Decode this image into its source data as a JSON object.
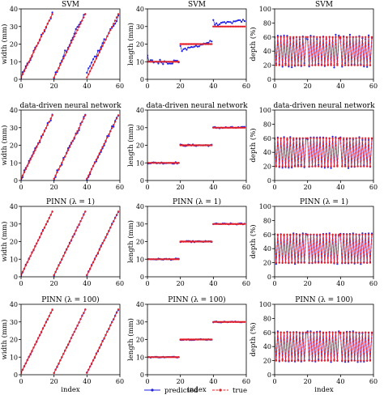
{
  "legend": {
    "predicted_label": "predicted",
    "true_label": "true"
  },
  "colors": {
    "predicted": "#1f1fe0",
    "true": "#e0202a",
    "axis": "#000000"
  },
  "chart_data": [
    {
      "type": "line",
      "title": "SVM",
      "xlabel": "",
      "ylabel": "width (mm)",
      "xlim": [
        0,
        60
      ],
      "ylim": [
        0,
        40
      ],
      "xticks": [
        "0",
        "20",
        "40",
        "60"
      ],
      "yticks": [
        "0",
        "10",
        "20",
        "30",
        "40"
      ],
      "kind": "width",
      "quality": "svm"
    },
    {
      "type": "line",
      "title": "SVM",
      "xlabel": "",
      "ylabel": "length (mm)",
      "xlim": [
        0,
        60
      ],
      "ylim": [
        0,
        40
      ],
      "xticks": [
        "0",
        "20",
        "40",
        "60"
      ],
      "yticks": [
        "0",
        "10",
        "20",
        "30",
        "40"
      ],
      "kind": "length",
      "quality": "svm"
    },
    {
      "type": "line",
      "title": "SVM",
      "xlabel": "",
      "ylabel": "depth (%)",
      "xlim": [
        0,
        60
      ],
      "ylim": [
        0,
        100
      ],
      "xticks": [
        "0",
        "20",
        "40",
        "60"
      ],
      "yticks": [
        "0",
        "20",
        "40",
        "60",
        "80",
        "100"
      ],
      "kind": "depth",
      "quality": "svm"
    },
    {
      "type": "line",
      "title": "data-driven neural network",
      "xlabel": "",
      "ylabel": "width (mm)",
      "xlim": [
        0,
        60
      ],
      "ylim": [
        0,
        40
      ],
      "xticks": [
        "0",
        "20",
        "40",
        "60"
      ],
      "yticks": [
        "0",
        "10",
        "20",
        "30",
        "40"
      ],
      "kind": "width",
      "quality": "nn"
    },
    {
      "type": "line",
      "title": "data-driven neural network",
      "xlabel": "",
      "ylabel": "length (mm)",
      "xlim": [
        0,
        60
      ],
      "ylim": [
        0,
        40
      ],
      "xticks": [
        "0",
        "20",
        "40",
        "60"
      ],
      "yticks": [
        "0",
        "10",
        "20",
        "30",
        "40"
      ],
      "kind": "length",
      "quality": "nn"
    },
    {
      "type": "line",
      "title": "data-driven neural network",
      "xlabel": "",
      "ylabel": "depth (%)",
      "xlim": [
        0,
        60
      ],
      "ylim": [
        0,
        100
      ],
      "xticks": [
        "0",
        "20",
        "40",
        "60"
      ],
      "yticks": [
        "0",
        "20",
        "40",
        "60",
        "80",
        "100"
      ],
      "kind": "depth",
      "quality": "nn"
    },
    {
      "type": "line",
      "title": "PINN (λ = 1)",
      "xlabel": "",
      "ylabel": "width (mm)",
      "xlim": [
        0,
        60
      ],
      "ylim": [
        0,
        40
      ],
      "xticks": [
        "0",
        "20",
        "40",
        "60"
      ],
      "yticks": [
        "0",
        "10",
        "20",
        "30",
        "40"
      ],
      "kind": "width",
      "quality": "pinn1"
    },
    {
      "type": "line",
      "title": "PINN (λ = 1)",
      "xlabel": "",
      "ylabel": "length (mm)",
      "xlim": [
        0,
        60
      ],
      "ylim": [
        0,
        40
      ],
      "xticks": [
        "0",
        "20",
        "40",
        "60"
      ],
      "yticks": [
        "0",
        "10",
        "20",
        "30",
        "40"
      ],
      "kind": "length",
      "quality": "pinn1"
    },
    {
      "type": "line",
      "title": "PINN (λ = 1)",
      "xlabel": "",
      "ylabel": "depth (%)",
      "xlim": [
        0,
        60
      ],
      "ylim": [
        0,
        100
      ],
      "xticks": [
        "0",
        "20",
        "40",
        "60"
      ],
      "yticks": [
        "0",
        "20",
        "40",
        "60",
        "80",
        "100"
      ],
      "kind": "depth",
      "quality": "pinn1"
    },
    {
      "type": "line",
      "title": "PINN (λ = 100)",
      "xlabel": "index",
      "ylabel": "width (mm)",
      "xlim": [
        0,
        60
      ],
      "ylim": [
        0,
        40
      ],
      "xticks": [
        "0",
        "20",
        "40",
        "60"
      ],
      "yticks": [
        "0",
        "10",
        "20",
        "30",
        "40"
      ],
      "kind": "width",
      "quality": "pinn100"
    },
    {
      "type": "line",
      "title": "PINN (λ = 100)",
      "xlabel": "index",
      "ylabel": "length (mm)",
      "xlim": [
        0,
        60
      ],
      "ylim": [
        0,
        40
      ],
      "xticks": [
        "0",
        "20",
        "40",
        "60"
      ],
      "yticks": [
        "0",
        "10",
        "20",
        "30",
        "40"
      ],
      "kind": "length",
      "quality": "pinn100"
    },
    {
      "type": "line",
      "title": "PINN (λ = 100)",
      "xlabel": "index",
      "ylabel": "depth (%)",
      "xlim": [
        0,
        60
      ],
      "ylim": [
        0,
        100
      ],
      "xticks": [
        "0",
        "20",
        "40",
        "60"
      ],
      "yticks": [
        "0",
        "20",
        "40",
        "60",
        "80",
        "100"
      ],
      "kind": "depth",
      "quality": "pinn100"
    }
  ]
}
